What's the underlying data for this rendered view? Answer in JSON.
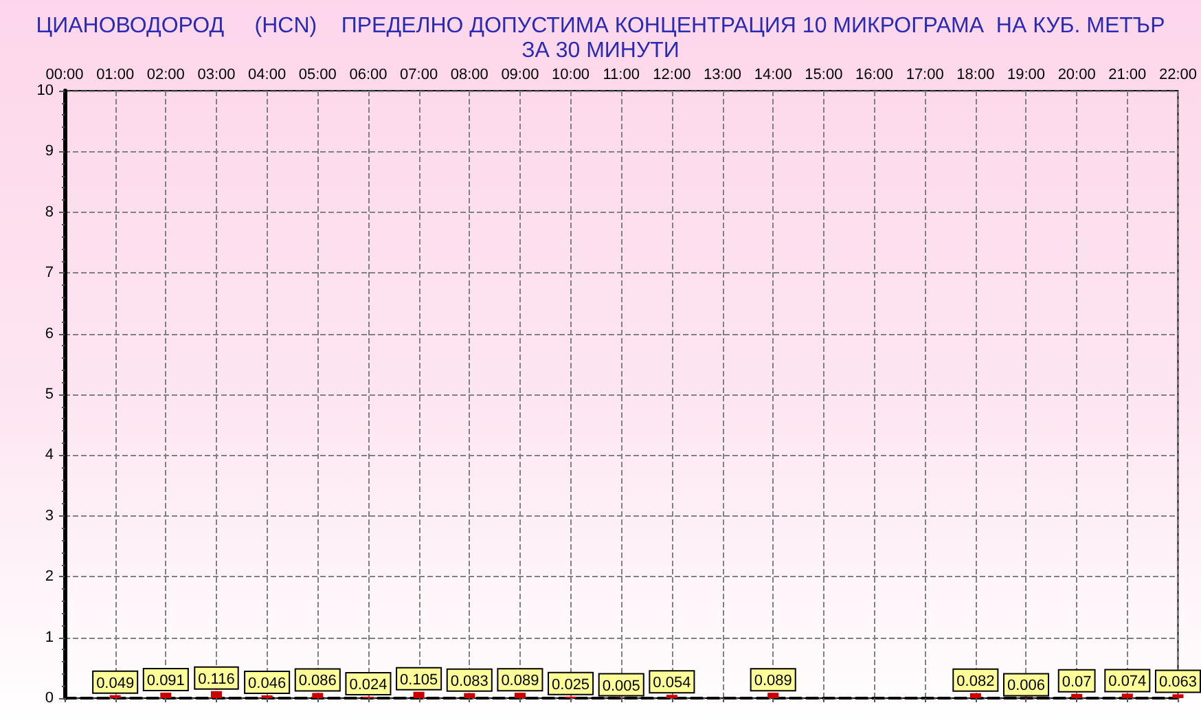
{
  "chart_data": {
    "type": "bar",
    "title": "ЦИАНОВОДОРОД     (HCN)    ПРЕДЕЛНО ДОПУСТИМА КОНЦЕНТРАЦИЯ 10 МИКРОГРАМА  НА КУБ. МЕТЪР\nЗА 30 МИНУТИ",
    "categories": [
      "00:00",
      "01:00",
      "02:00",
      "03:00",
      "04:00",
      "05:00",
      "06:00",
      "07:00",
      "08:00",
      "09:00",
      "10:00",
      "11:00",
      "12:00",
      "13:00",
      "14:00",
      "15:00",
      "16:00",
      "17:00",
      "18:00",
      "19:00",
      "20:00",
      "21:00",
      "22:00"
    ],
    "values": [
      null,
      0.049,
      0.091,
      0.116,
      0.046,
      0.086,
      0.024,
      0.105,
      0.083,
      0.089,
      0.025,
      0.005,
      0.054,
      null,
      0.089,
      null,
      null,
      null,
      0.082,
      0.006,
      0.07,
      0.074,
      0.063
    ],
    "color": "#cc0000",
    "ylim": [
      0,
      10
    ],
    "yticks": [
      0,
      1,
      2,
      3,
      4,
      5,
      6,
      7,
      8,
      9,
      10
    ],
    "grid": true,
    "data_labels": true
  }
}
